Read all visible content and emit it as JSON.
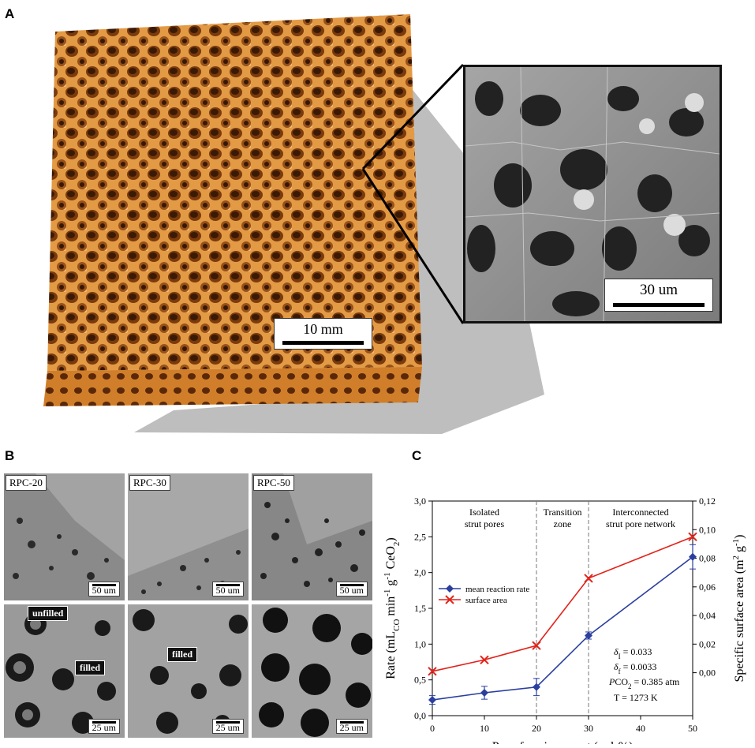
{
  "panels": {
    "a": {
      "letter": "A",
      "foam_scale_label": "10 mm",
      "sem_scale_label": "30 um"
    },
    "b": {
      "letter": "B",
      "tiles_top": [
        {
          "label": "RPC-20",
          "scale": "50 um"
        },
        {
          "label": "RPC-30",
          "scale": "50 um"
        },
        {
          "label": "RPC-50",
          "scale": "50 um"
        }
      ],
      "tiles_bottom": [
        {
          "scale": "25 um"
        },
        {
          "scale": "25 um"
        },
        {
          "scale": "25 um"
        }
      ],
      "callout_unfilled": "unfilled",
      "callout_filled_1": "filled",
      "callout_filled_2": "filled"
    },
    "c": {
      "letter": "C"
    }
  },
  "colors": {
    "foam": "#e0913a",
    "foam_dark": "#7a3a0c",
    "series_rate": "#2b3f9e",
    "series_area": "#e2231a"
  },
  "chart_data": {
    "type": "line",
    "xlabel": "Pore-forming agent (vol-%)",
    "ylabel": "Rate (mL",
    "ylabel_sub": "CO",
    "ylabel_mid": " min",
    "ylabel_sup1": "-1",
    "ylabel_mid2": " g",
    "ylabel_sup2": "-1",
    "ylabel_end": "CeO",
    "ylabel_sub2": "2",
    "ylabel_close": ")",
    "y2label": "Specific surface area (m",
    "y2label_sup1": "2",
    "y2label_mid": " g",
    "y2label_sup2": "-1",
    "y2label_close": ")",
    "xlim": [
      0,
      50
    ],
    "ylim": [
      0,
      3.0
    ],
    "y2lim": [
      -0.03,
      0.12
    ],
    "x_ticks": [
      0,
      10,
      20,
      30,
      40,
      50
    ],
    "y_ticks": [
      "0,0",
      "0,5",
      "1,0",
      "1,5",
      "2,0",
      "2,5",
      "3,0"
    ],
    "y_tick_values": [
      0,
      0.5,
      1.0,
      1.5,
      2.0,
      2.5,
      3.0
    ],
    "y2_ticks": [
      "0,00",
      "0,02",
      "0,04",
      "0,06",
      "0,08",
      "0,10",
      "0,12"
    ],
    "y2_tick_values": [
      0,
      0.02,
      0.04,
      0.06,
      0.08,
      0.1,
      0.12
    ],
    "series": [
      {
        "name": "mean reaction rate",
        "axis": "left",
        "marker": "diamond",
        "x": [
          0,
          10,
          20,
          30,
          50
        ],
        "y": [
          0.22,
          0.32,
          0.4,
          1.12,
          2.22
        ],
        "err": [
          0.06,
          0.09,
          0.12,
          0.05,
          0.17
        ]
      },
      {
        "name": "surface area",
        "axis": "right",
        "marker": "x",
        "x": [
          0,
          10,
          20,
          30,
          50
        ],
        "y": [
          0.001,
          0.009,
          0.019,
          0.066,
          0.095
        ]
      }
    ],
    "zone_lines_x": [
      20,
      30
    ],
    "zones": [
      {
        "line1": "Isolated",
        "line2": "strut pores",
        "x_center": 10
      },
      {
        "line1": "Transition",
        "line2": "zone",
        "x_center": 25
      },
      {
        "line1": "Interconnected",
        "line2": "strut pore network",
        "x_center": 40
      }
    ],
    "legend_position": "center-left",
    "annotations": {
      "delta_i": "δ",
      "delta_i_sub": "I",
      "delta_i_val": " = 0.033",
      "delta_f": "δ",
      "delta_f_sub": "f",
      "delta_f_val": " = 0.0033",
      "pco2": "P",
      "pco2_mid": "CO",
      "pco2_sub": "2",
      "pco2_val": " = 0.385 atm",
      "temp": "T = 1273 K"
    }
  }
}
